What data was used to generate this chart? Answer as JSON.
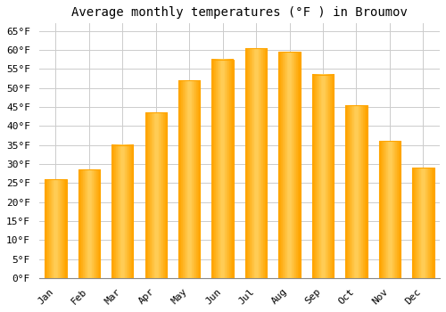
{
  "title": "Average monthly temperatures (°F ) in Broumov",
  "months": [
    "Jan",
    "Feb",
    "Mar",
    "Apr",
    "May",
    "Jun",
    "Jul",
    "Aug",
    "Sep",
    "Oct",
    "Nov",
    "Dec"
  ],
  "values": [
    26,
    28.5,
    35,
    43.5,
    52,
    57.5,
    60.5,
    59.5,
    53.5,
    45.5,
    36,
    29
  ],
  "bar_color_center": "#FFD060",
  "bar_color_edge": "#FFA500",
  "ylim": [
    0,
    67
  ],
  "yticks": [
    0,
    5,
    10,
    15,
    20,
    25,
    30,
    35,
    40,
    45,
    50,
    55,
    60,
    65
  ],
  "ytick_labels": [
    "0°F",
    "5°F",
    "10°F",
    "15°F",
    "20°F",
    "25°F",
    "30°F",
    "35°F",
    "40°F",
    "45°F",
    "50°F",
    "55°F",
    "60°F",
    "65°F"
  ],
  "background_color": "#ffffff",
  "grid_color": "#cccccc",
  "title_fontsize": 10,
  "tick_fontsize": 8,
  "font_family": "monospace"
}
